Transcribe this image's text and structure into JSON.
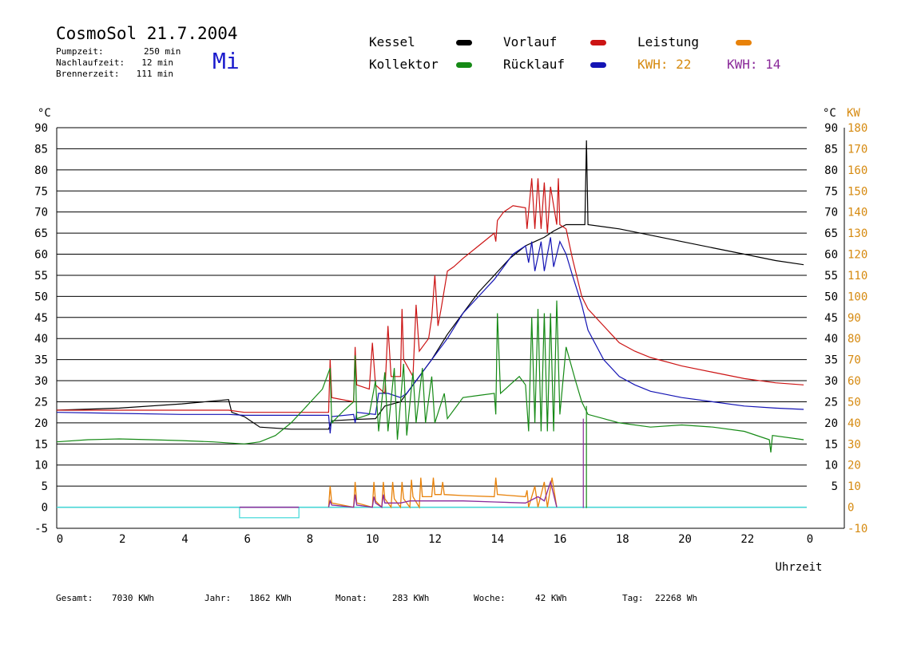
{
  "header": {
    "title": "CosmoSol 21.7.2004",
    "day": "Mi",
    "info": [
      {
        "label": "Pumpzeit:",
        "value": "250 min"
      },
      {
        "label": "Nachlaufzeit:",
        "value": "12 min"
      },
      {
        "label": "Brennerzeit:",
        "value": "111 min"
      }
    ]
  },
  "legend": {
    "kessel": "Kessel",
    "kollektor": "Kollektor",
    "vorlauf": "Vorlauf",
    "ruecklauf": "Rücklauf",
    "leistung": "Leistung",
    "kwh1": "KWH: 22",
    "kwh2": "KWH: 14"
  },
  "colors": {
    "kessel": "#000000",
    "kollektor": "#168a16",
    "vorlauf": "#cc1414",
    "ruecklauf": "#1414b4",
    "leistung": "#e8820a",
    "leistung_text": "#d68a10",
    "kwh2": "#8a2a9a",
    "baseline": "#40d8d8"
  },
  "footer": [
    {
      "label": "Gesamt:",
      "value": "7030 KWh"
    },
    {
      "label": "Jahr:",
      "value": "1862 KWh"
    },
    {
      "label": "Monat:",
      "value": "283 KWh"
    },
    {
      "label": "Woche:",
      "value": "42 KWh"
    },
    {
      "label": "Tag:",
      "value": "22268 Wh"
    }
  ],
  "chart_data": {
    "type": "line",
    "xlabel": "Uhrzeit",
    "ylabel": "°C",
    "y2label": "KW",
    "xlim": [
      0,
      24
    ],
    "ylim": [
      -5,
      90
    ],
    "y2lim": [
      -10,
      180
    ],
    "x_ticks": [
      "0",
      "2",
      "4",
      "6",
      "8",
      "10",
      "12",
      "14",
      "16",
      "18",
      "20",
      "22",
      "0"
    ],
    "y_ticks_left": [
      "-5",
      "0",
      "5",
      "10",
      "15",
      "20",
      "25",
      "30",
      "35",
      "40",
      "45",
      "50",
      "55",
      "60",
      "65",
      "70",
      "75",
      "80",
      "85",
      "90"
    ],
    "y_ticks_right": [
      "5",
      "10",
      "15",
      "20",
      "25",
      "30",
      "35",
      "40",
      "45",
      "50",
      "55",
      "60",
      "65",
      "70",
      "75",
      "80",
      "85",
      "90"
    ],
    "y2_ticks": [
      "-10",
      "0",
      "10",
      "20",
      "30",
      "40",
      "50",
      "60",
      "70",
      "80",
      "90",
      "100",
      "110",
      "120",
      "130",
      "140",
      "150",
      "160",
      "170",
      "180"
    ],
    "grid": true,
    "series": [
      {
        "name": "Kessel",
        "color": "#000000",
        "points": [
          [
            0,
            23
          ],
          [
            2,
            23.5
          ],
          [
            4,
            24.5
          ],
          [
            5.5,
            25.5
          ],
          [
            5.6,
            22.5
          ],
          [
            6,
            21.5
          ],
          [
            6.5,
            19
          ],
          [
            7.5,
            18.5
          ],
          [
            8.7,
            18.5
          ],
          [
            8.8,
            20.5
          ],
          [
            9.5,
            20.8
          ],
          [
            10.2,
            21
          ],
          [
            10.5,
            24
          ],
          [
            11,
            25
          ],
          [
            11.5,
            30
          ],
          [
            12,
            35
          ],
          [
            12.5,
            41
          ],
          [
            13,
            46
          ],
          [
            13.5,
            51
          ],
          [
            14,
            55
          ],
          [
            14.5,
            59
          ],
          [
            15,
            62
          ],
          [
            15.3,
            63
          ],
          [
            15.6,
            64
          ],
          [
            15.9,
            65.5
          ],
          [
            16.3,
            67
          ],
          [
            16.9,
            67
          ],
          [
            16.95,
            87
          ],
          [
            17,
            67
          ],
          [
            18,
            66
          ],
          [
            19,
            64.5
          ],
          [
            20,
            63
          ],
          [
            21,
            61.5
          ],
          [
            22,
            60
          ],
          [
            23,
            58.5
          ],
          [
            23.9,
            57.5
          ]
        ]
      },
      {
        "name": "Vorlauf",
        "color": "#cc1414",
        "points": [
          [
            0,
            23
          ],
          [
            4,
            23
          ],
          [
            5.5,
            23
          ],
          [
            6,
            22.5
          ],
          [
            7,
            22.5
          ],
          [
            8.7,
            22.5
          ],
          [
            8.75,
            35
          ],
          [
            8.8,
            26
          ],
          [
            9.5,
            25
          ],
          [
            9.55,
            38
          ],
          [
            9.6,
            29
          ],
          [
            10,
            28
          ],
          [
            10.1,
            39
          ],
          [
            10.2,
            29
          ],
          [
            10.5,
            27
          ],
          [
            10.6,
            43
          ],
          [
            10.7,
            31
          ],
          [
            11,
            31
          ],
          [
            11.05,
            47
          ],
          [
            11.1,
            35
          ],
          [
            11.4,
            31
          ],
          [
            11.5,
            48
          ],
          [
            11.6,
            37
          ],
          [
            11.9,
            40
          ],
          [
            12,
            45
          ],
          [
            12.1,
            55
          ],
          [
            12.2,
            43
          ],
          [
            12.3,
            47
          ],
          [
            12.5,
            56
          ],
          [
            12.7,
            57
          ],
          [
            13,
            59
          ],
          [
            13.5,
            62
          ],
          [
            14,
            65
          ],
          [
            14.05,
            63
          ],
          [
            14.1,
            68
          ],
          [
            14.3,
            70
          ],
          [
            14.6,
            71.5
          ],
          [
            15,
            71
          ],
          [
            15.05,
            66
          ],
          [
            15.2,
            78
          ],
          [
            15.3,
            66
          ],
          [
            15.4,
            78
          ],
          [
            15.5,
            66
          ],
          [
            15.6,
            77
          ],
          [
            15.7,
            65
          ],
          [
            15.8,
            76
          ],
          [
            16,
            67
          ],
          [
            16.05,
            78
          ],
          [
            16.1,
            67
          ],
          [
            16.3,
            66
          ],
          [
            16.5,
            59
          ],
          [
            16.8,
            50
          ],
          [
            17,
            47
          ],
          [
            17.5,
            43
          ],
          [
            18,
            39
          ],
          [
            18.5,
            37
          ],
          [
            19,
            35.5
          ],
          [
            20,
            33.5
          ],
          [
            21,
            32
          ],
          [
            22,
            30.5
          ],
          [
            23,
            29.5
          ],
          [
            23.9,
            29
          ]
        ]
      },
      {
        "name": "Rücklauf",
        "color": "#1414b4",
        "points": [
          [
            0,
            22.5
          ],
          [
            4,
            22
          ],
          [
            5.5,
            22
          ],
          [
            6,
            21.8
          ],
          [
            8,
            21.8
          ],
          [
            8.7,
            21.8
          ],
          [
            8.75,
            17.5
          ],
          [
            8.8,
            21.5
          ],
          [
            9.5,
            22
          ],
          [
            9.55,
            20
          ],
          [
            9.6,
            22.5
          ],
          [
            10.2,
            22
          ],
          [
            10.3,
            27
          ],
          [
            10.6,
            27
          ],
          [
            11,
            26
          ],
          [
            11.2,
            27
          ],
          [
            11.5,
            30
          ],
          [
            11.8,
            33
          ],
          [
            12,
            35
          ],
          [
            12.5,
            40
          ],
          [
            13,
            46
          ],
          [
            13.5,
            50
          ],
          [
            14,
            54
          ],
          [
            14.3,
            57
          ],
          [
            14.6,
            60
          ],
          [
            15,
            62
          ],
          [
            15.1,
            58
          ],
          [
            15.2,
            63
          ],
          [
            15.3,
            56
          ],
          [
            15.5,
            63
          ],
          [
            15.6,
            56
          ],
          [
            15.8,
            64
          ],
          [
            15.9,
            57
          ],
          [
            16.1,
            63
          ],
          [
            16.3,
            60
          ],
          [
            16.5,
            55
          ],
          [
            16.8,
            48
          ],
          [
            17,
            42
          ],
          [
            17.5,
            35
          ],
          [
            18,
            31
          ],
          [
            18.5,
            29
          ],
          [
            19,
            27.5
          ],
          [
            20,
            26
          ],
          [
            21,
            25
          ],
          [
            22,
            24
          ],
          [
            23,
            23.5
          ],
          [
            23.9,
            23.2
          ]
        ]
      },
      {
        "name": "Kollektor",
        "color": "#168a16",
        "points": [
          [
            0,
            15.5
          ],
          [
            1,
            16
          ],
          [
            2,
            16.2
          ],
          [
            3,
            16
          ],
          [
            4,
            15.8
          ],
          [
            5,
            15.5
          ],
          [
            6,
            15
          ],
          [
            6.5,
            15.5
          ],
          [
            7,
            17
          ],
          [
            7.5,
            20
          ],
          [
            8,
            24
          ],
          [
            8.5,
            28
          ],
          [
            8.75,
            33
          ],
          [
            8.8,
            20
          ],
          [
            9.2,
            23
          ],
          [
            9.5,
            25
          ],
          [
            9.55,
            36
          ],
          [
            9.6,
            21
          ],
          [
            10,
            22
          ],
          [
            10.2,
            30
          ],
          [
            10.3,
            18
          ],
          [
            10.5,
            32
          ],
          [
            10.6,
            18
          ],
          [
            10.8,
            33
          ],
          [
            10.9,
            16
          ],
          [
            11.1,
            34
          ],
          [
            11.2,
            17
          ],
          [
            11.4,
            32
          ],
          [
            11.5,
            20
          ],
          [
            11.7,
            33
          ],
          [
            11.8,
            20
          ],
          [
            12,
            31
          ],
          [
            12.1,
            20
          ],
          [
            12.4,
            27
          ],
          [
            12.5,
            21
          ],
          [
            13,
            26
          ],
          [
            13.5,
            26.5
          ],
          [
            14,
            27
          ],
          [
            14.05,
            22
          ],
          [
            14.1,
            46
          ],
          [
            14.2,
            27
          ],
          [
            14.5,
            29
          ],
          [
            14.8,
            31
          ],
          [
            15,
            29
          ],
          [
            15.1,
            18
          ],
          [
            15.2,
            45
          ],
          [
            15.3,
            20
          ],
          [
            15.4,
            47
          ],
          [
            15.5,
            18
          ],
          [
            15.6,
            46
          ],
          [
            15.7,
            18
          ],
          [
            15.8,
            46
          ],
          [
            15.9,
            18
          ],
          [
            16,
            49
          ],
          [
            16.1,
            22
          ],
          [
            16.3,
            38
          ],
          [
            16.6,
            30
          ],
          [
            16.8,
            25
          ],
          [
            17,
            22
          ],
          [
            17.5,
            21
          ],
          [
            18,
            20
          ],
          [
            19,
            19
          ],
          [
            20,
            19.5
          ],
          [
            21,
            19
          ],
          [
            22,
            18
          ],
          [
            22.8,
            16
          ],
          [
            22.85,
            13
          ],
          [
            22.9,
            17
          ],
          [
            23.9,
            16
          ]
        ]
      }
    ],
    "leistung_series": [
      {
        "name": "Leistung",
        "color": "#e8820a",
        "points": [
          [
            8.7,
            0
          ],
          [
            8.75,
            10
          ],
          [
            8.8,
            2
          ],
          [
            9.5,
            0
          ],
          [
            9.55,
            12
          ],
          [
            9.6,
            2
          ],
          [
            10.1,
            0
          ],
          [
            10.15,
            12
          ],
          [
            10.2,
            3
          ],
          [
            10.4,
            0
          ],
          [
            10.45,
            12
          ],
          [
            10.5,
            4
          ],
          [
            10.7,
            0
          ],
          [
            10.75,
            12
          ],
          [
            10.8,
            4
          ],
          [
            11,
            0
          ],
          [
            11.05,
            12
          ],
          [
            11.1,
            4
          ],
          [
            11.3,
            0
          ],
          [
            11.35,
            13
          ],
          [
            11.4,
            5
          ],
          [
            11.6,
            0
          ],
          [
            11.65,
            14
          ],
          [
            11.7,
            5
          ],
          [
            12,
            5
          ],
          [
            12.05,
            14
          ],
          [
            12.1,
            6
          ],
          [
            12.3,
            6
          ],
          [
            12.35,
            12
          ],
          [
            12.4,
            6
          ],
          [
            13,
            5.5
          ],
          [
            14,
            5
          ],
          [
            14.05,
            14
          ],
          [
            14.1,
            6
          ],
          [
            15,
            5
          ],
          [
            15.05,
            8
          ],
          [
            15.1,
            0
          ],
          [
            15.3,
            10
          ],
          [
            15.4,
            0
          ],
          [
            15.6,
            12
          ],
          [
            15.7,
            0
          ],
          [
            15.85,
            14
          ],
          [
            16,
            0
          ],
          [
            16,
            0
          ]
        ]
      },
      {
        "name": "KWH 14",
        "color": "#8a2a9a",
        "points": [
          [
            8.7,
            0
          ],
          [
            8.75,
            3
          ],
          [
            8.8,
            1
          ],
          [
            9.5,
            0
          ],
          [
            9.55,
            6
          ],
          [
            9.6,
            1
          ],
          [
            10.1,
            0
          ],
          [
            10.15,
            5
          ],
          [
            10.2,
            2
          ],
          [
            10.4,
            0
          ],
          [
            10.45,
            6
          ],
          [
            10.5,
            2
          ],
          [
            11,
            2
          ],
          [
            11.3,
            3
          ],
          [
            12,
            3
          ],
          [
            13,
            3
          ],
          [
            14,
            2.5
          ],
          [
            15,
            2
          ],
          [
            15.4,
            5
          ],
          [
            15.6,
            3
          ],
          [
            15.8,
            12
          ],
          [
            16,
            0
          ]
        ]
      }
    ],
    "annotations": [
      "KWH: 22",
      "KWH: 14"
    ]
  }
}
